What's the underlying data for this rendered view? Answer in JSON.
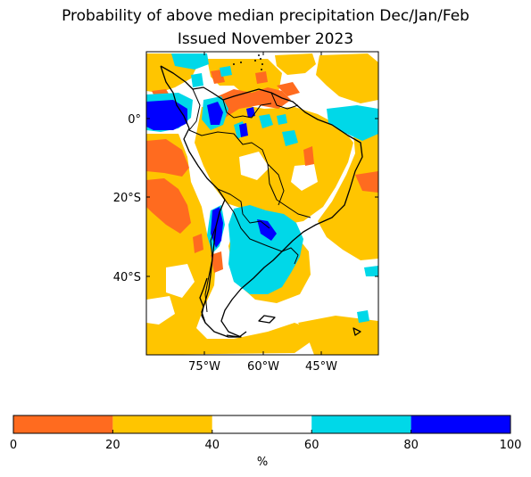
{
  "title": {
    "line1": "Probability of above median precipitation Dec/Jan/Feb",
    "line2": "Issued November 2023"
  },
  "map": {
    "region": "South America",
    "lat_ticks": [
      "0°",
      "20°S",
      "40°S"
    ],
    "lon_ticks": [
      "75°W",
      "60°W",
      "45°W"
    ],
    "colors": {
      "orange": "#ff6b1f",
      "gold": "#ffc500",
      "white": "#ffffff",
      "cyan": "#00d8e8",
      "blue": "#0000ff"
    }
  },
  "colorbar": {
    "ticks": [
      "0",
      "20",
      "40",
      "60",
      "80",
      "100"
    ],
    "unit_label": "%",
    "bins": [
      {
        "from": 0,
        "to": 20,
        "color": "#ff6b1f"
      },
      {
        "from": 20,
        "to": 40,
        "color": "#ffc500"
      },
      {
        "from": 40,
        "to": 60,
        "color": "#ffffff"
      },
      {
        "from": 60,
        "to": 80,
        "color": "#00d8e8"
      },
      {
        "from": 80,
        "to": 100,
        "color": "#0000ff"
      }
    ]
  }
}
